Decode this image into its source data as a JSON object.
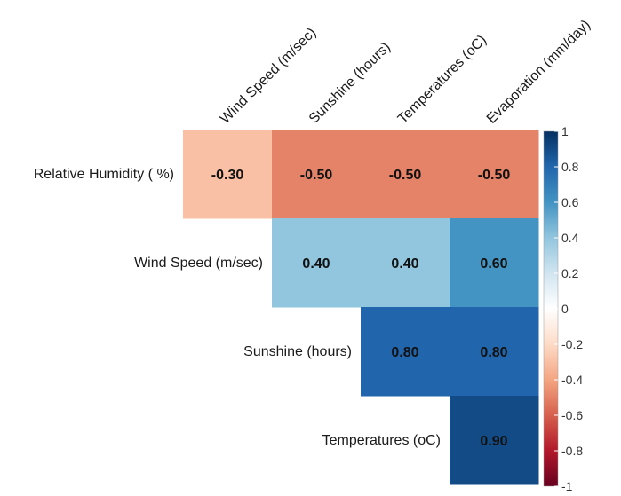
{
  "chart_data": {
    "type": "heatmap",
    "title": "",
    "rows": [
      "Relative Humidity ( %)",
      "Wind Speed (m/sec)",
      "Sunshine (hours)",
      "Temperatures (oC)"
    ],
    "columns": [
      "Wind Speed (m/sec)",
      "Sunshine (hours)",
      "Temperatures (oC)",
      "Evaporation (mm/day)"
    ],
    "cells": [
      {
        "row": 0,
        "col": 0,
        "value": -0.3,
        "label": "-0.30"
      },
      {
        "row": 0,
        "col": 1,
        "value": -0.5,
        "label": "-0.50"
      },
      {
        "row": 0,
        "col": 2,
        "value": -0.5,
        "label": "-0.50"
      },
      {
        "row": 0,
        "col": 3,
        "value": -0.5,
        "label": "-0.50"
      },
      {
        "row": 1,
        "col": 1,
        "value": 0.4,
        "label": "0.40"
      },
      {
        "row": 1,
        "col": 2,
        "value": 0.4,
        "label": "0.40"
      },
      {
        "row": 1,
        "col": 3,
        "value": 0.6,
        "label": "0.60"
      },
      {
        "row": 2,
        "col": 2,
        "value": 0.8,
        "label": "0.80"
      },
      {
        "row": 2,
        "col": 3,
        "value": 0.8,
        "label": "0.80"
      },
      {
        "row": 3,
        "col": 3,
        "value": 0.9,
        "label": "0.90"
      }
    ],
    "colorbar": {
      "range": [
        -1,
        1
      ],
      "ticks": [
        "1",
        "0.8",
        "0.6",
        "0.4",
        "0.2",
        "0",
        "-0.2",
        "-0.4",
        "-0.6",
        "-0.8",
        "-1"
      ],
      "tick_values": [
        1,
        0.8,
        0.6,
        0.4,
        0.2,
        0,
        -0.2,
        -0.4,
        -0.6,
        -0.8,
        -1
      ],
      "colors": [
        "#67001f",
        "#b2182b",
        "#d6604d",
        "#f4a582",
        "#fddbc7",
        "#ffffff",
        "#d1e5f0",
        "#92c5de",
        "#4393c3",
        "#2166ac",
        "#053061"
      ],
      "placement": "right"
    }
  }
}
